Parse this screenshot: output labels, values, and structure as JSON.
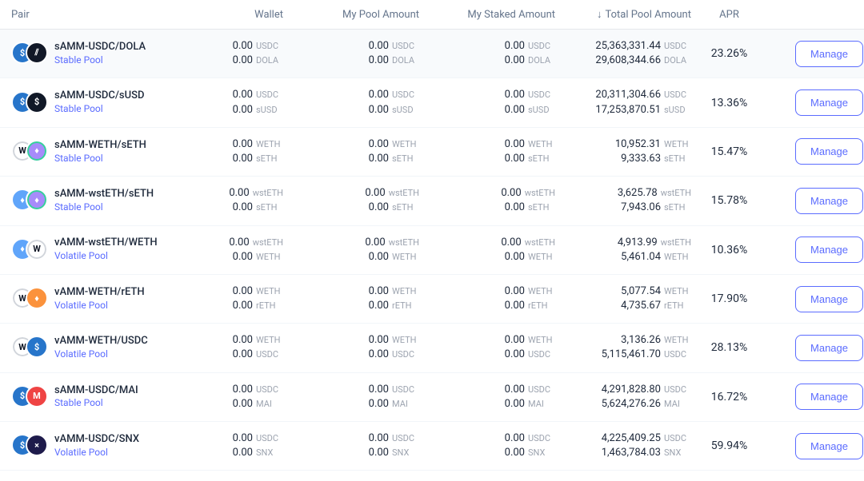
{
  "colors": {
    "text_primary": "#1e293b",
    "text_muted": "#64748b",
    "symbol": "#9ca3af",
    "link": "#5b6cff",
    "border": "#e5e7eb",
    "row_border": "#f1f5f9",
    "highlight_bg": "#f8fafc",
    "btn_border": "#5b6cff"
  },
  "headers": {
    "pair": "Pair",
    "wallet": "Wallet",
    "my_pool": "My Pool Amount",
    "my_staked": "My Staked Amount",
    "total_pool": "Total Pool Amount",
    "apr": "APR",
    "sort_arrow": "↓"
  },
  "manage_label": "Manage",
  "rows": [
    {
      "pair": "sAMM-USDC/DOLA",
      "pool_type": "Stable Pool",
      "highlight": true,
      "iconA": {
        "bg": "#2775ca",
        "label": "$"
      },
      "iconB": {
        "bg": "#111827",
        "label": "⫽"
      },
      "sym1": "USDC",
      "sym2": "DOLA",
      "wallet1": "0.00",
      "wallet2": "0.00",
      "pool1": "0.00",
      "pool2": "0.00",
      "staked1": "0.00",
      "staked2": "0.00",
      "total1": "25,363,331.44",
      "total2": "29,608,344.66",
      "apr": "23.26%"
    },
    {
      "pair": "sAMM-USDC/sUSD",
      "pool_type": "Stable Pool",
      "highlight": false,
      "iconA": {
        "bg": "#2775ca",
        "label": "$"
      },
      "iconB": {
        "bg": "#111827",
        "label": "$"
      },
      "sym1": "USDC",
      "sym2": "sUSD",
      "wallet1": "0.00",
      "wallet2": "0.00",
      "pool1": "0.00",
      "pool2": "0.00",
      "staked1": "0.00",
      "staked2": "0.00",
      "total1": "20,311,304.66",
      "total2": "17,253,870.51",
      "apr": "13.36%"
    },
    {
      "pair": "sAMM-WETH/sETH",
      "pool_type": "Stable Pool",
      "highlight": false,
      "iconA": {
        "bg": "#ffffff",
        "label": "W",
        "fg": "#111827",
        "border": "#d1d5db"
      },
      "iconB": {
        "bg": "#a78bfa",
        "label": "♦",
        "border": "#34d399"
      },
      "sym1": "WETH",
      "sym2": "sETH",
      "wallet1": "0.00",
      "wallet2": "0.00",
      "pool1": "0.00",
      "pool2": "0.00",
      "staked1": "0.00",
      "staked2": "0.00",
      "total1": "10,952.31",
      "total2": "9,333.63",
      "apr": "15.47%"
    },
    {
      "pair": "sAMM-wstETH/sETH",
      "pool_type": "Stable Pool",
      "highlight": false,
      "iconA": {
        "bg": "#60a5fa",
        "label": "♦"
      },
      "iconB": {
        "bg": "#a78bfa",
        "label": "♦",
        "border": "#34d399"
      },
      "sym1": "wstETH",
      "sym2": "sETH",
      "wallet1": "0.00",
      "wallet2": "0.00",
      "pool1": "0.00",
      "pool2": "0.00",
      "staked1": "0.00",
      "staked2": "0.00",
      "total1": "3,625.78",
      "total2": "7,943.06",
      "apr": "15.78%"
    },
    {
      "pair": "vAMM-wstETH/WETH",
      "pool_type": "Volatile Pool",
      "highlight": false,
      "iconA": {
        "bg": "#60a5fa",
        "label": "♦"
      },
      "iconB": {
        "bg": "#ffffff",
        "label": "W",
        "fg": "#111827",
        "border": "#d1d5db"
      },
      "sym1": "wstETH",
      "sym2": "WETH",
      "wallet1": "0.00",
      "wallet2": "0.00",
      "pool1": "0.00",
      "pool2": "0.00",
      "staked1": "0.00",
      "staked2": "0.00",
      "total1": "4,913.99",
      "total2": "5,461.04",
      "apr": "10.36%"
    },
    {
      "pair": "vAMM-WETH/rETH",
      "pool_type": "Volatile Pool",
      "highlight": false,
      "iconA": {
        "bg": "#ffffff",
        "label": "W",
        "fg": "#111827",
        "border": "#d1d5db"
      },
      "iconB": {
        "bg": "#fb923c",
        "label": "♦"
      },
      "sym1": "WETH",
      "sym2": "rETH",
      "wallet1": "0.00",
      "wallet2": "0.00",
      "pool1": "0.00",
      "pool2": "0.00",
      "staked1": "0.00",
      "staked2": "0.00",
      "total1": "5,077.54",
      "total2": "4,735.67",
      "apr": "17.90%"
    },
    {
      "pair": "vAMM-WETH/USDC",
      "pool_type": "Volatile Pool",
      "highlight": false,
      "iconA": {
        "bg": "#ffffff",
        "label": "W",
        "fg": "#111827",
        "border": "#d1d5db"
      },
      "iconB": {
        "bg": "#2775ca",
        "label": "$"
      },
      "sym1": "WETH",
      "sym2": "USDC",
      "wallet1": "0.00",
      "wallet2": "0.00",
      "pool1": "0.00",
      "pool2": "0.00",
      "staked1": "0.00",
      "staked2": "0.00",
      "total1": "3,136.26",
      "total2": "5,115,461.70",
      "apr": "28.13%"
    },
    {
      "pair": "sAMM-USDC/MAI",
      "pool_type": "Stable Pool",
      "highlight": false,
      "iconA": {
        "bg": "#2775ca",
        "label": "$"
      },
      "iconB": {
        "bg": "#ef4444",
        "label": "M"
      },
      "sym1": "USDC",
      "sym2": "MAI",
      "wallet1": "0.00",
      "wallet2": "0.00",
      "pool1": "0.00",
      "pool2": "0.00",
      "staked1": "0.00",
      "staked2": "0.00",
      "total1": "4,291,828.80",
      "total2": "5,624,276.26",
      "apr": "16.72%"
    },
    {
      "pair": "vAMM-USDC/SNX",
      "pool_type": "Volatile Pool",
      "highlight": false,
      "iconA": {
        "bg": "#2775ca",
        "label": "$"
      },
      "iconB": {
        "bg": "#1e1b4b",
        "label": "×"
      },
      "sym1": "USDC",
      "sym2": "SNX",
      "wallet1": "0.00",
      "wallet2": "0.00",
      "pool1": "0.00",
      "pool2": "0.00",
      "staked1": "0.00",
      "staked2": "0.00",
      "total1": "4,225,409.25",
      "total2": "1,463,784.03",
      "apr": "59.94%"
    }
  ]
}
